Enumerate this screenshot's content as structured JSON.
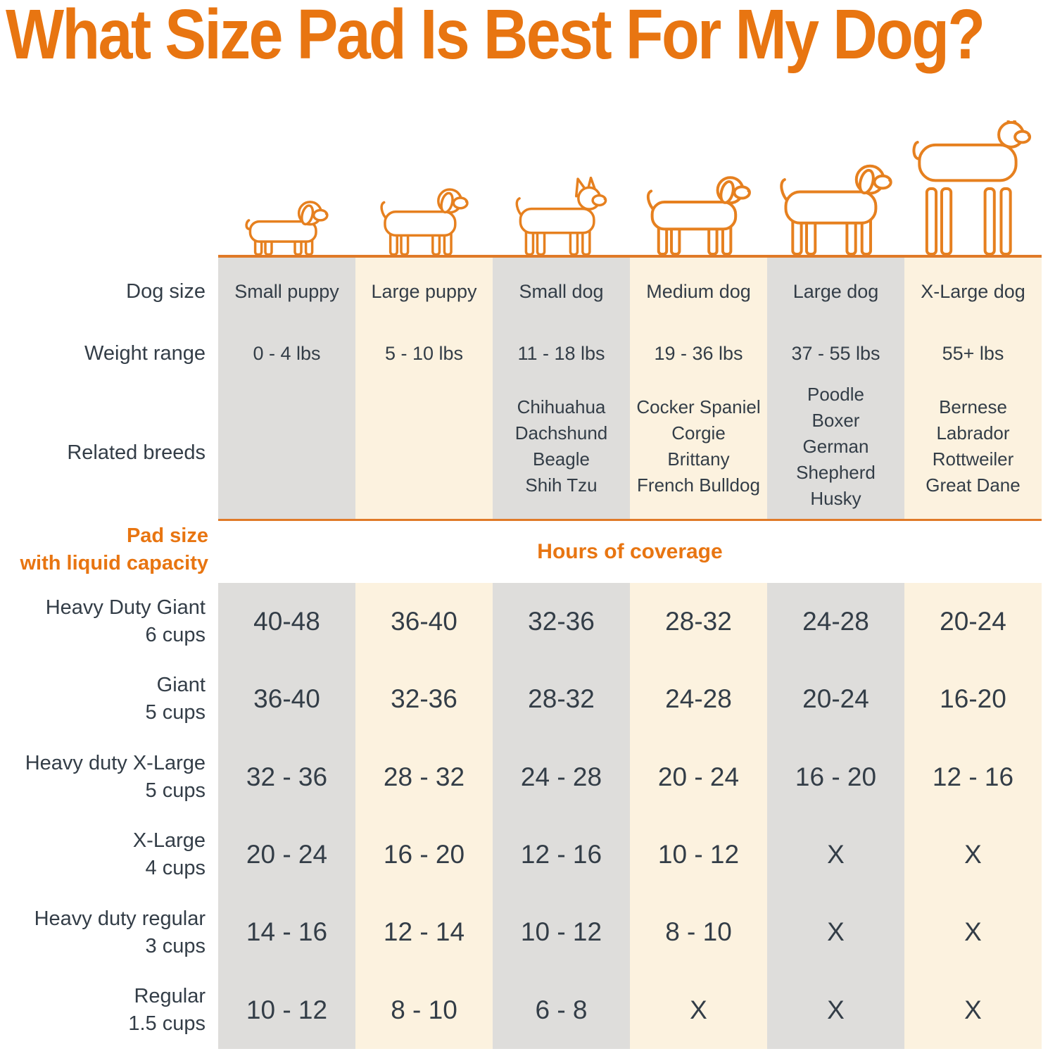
{
  "colors": {
    "accent_orange": "#E87511",
    "column_gray": "#DEDDDB",
    "column_cream": "#FCF2DF",
    "text_dark": "#333D47"
  },
  "chart_data": {
    "type": "table",
    "title": "What Size Pad Is Best For My Dog?",
    "row_headers": [
      "Dog size",
      "Weight range",
      "Related breeds"
    ],
    "columns": [
      {
        "label": "Small puppy",
        "weight": "0 - 4 lbs",
        "breeds": ""
      },
      {
        "label": "Large puppy",
        "weight": "5 - 10 lbs",
        "breeds": ""
      },
      {
        "label": "Small dog",
        "weight": "11 - 18 lbs",
        "breeds": "Chihuahua\nDachshund\nBeagle\nShih Tzu"
      },
      {
        "label": "Medium dog",
        "weight": "19 - 36 lbs",
        "breeds": "Cocker Spaniel\nCorgie\nBrittany\nFrench Bulldog"
      },
      {
        "label": "Large dog",
        "weight": "37 - 55 lbs",
        "breeds": "Poodle\nBoxer\nGerman\nShepherd\nHusky"
      },
      {
        "label": "X-Large dog",
        "weight": "55+ lbs",
        "breeds": "Bernese\nLabrador\nRottweiler\nGreat Dane"
      }
    ],
    "section_label": "Pad size\nwith liquid capacity",
    "coverage_header": "Hours of coverage",
    "pad_rows": [
      {
        "label": "Heavy Duty Giant",
        "capacity": "6 cups",
        "values": [
          "40-48",
          "36-40",
          "32-36",
          "28-32",
          "24-28",
          "20-24"
        ]
      },
      {
        "label": "Giant",
        "capacity": "5 cups",
        "values": [
          "36-40",
          "32-36",
          "28-32",
          "24-28",
          "20-24",
          "16-20"
        ]
      },
      {
        "label": "Heavy duty X-Large",
        "capacity": "5 cups",
        "values": [
          "32 - 36",
          "28 - 32",
          "24 - 28",
          "20 - 24",
          "16 - 20",
          "12 - 16"
        ]
      },
      {
        "label": "X-Large",
        "capacity": "4 cups",
        "values": [
          "20 - 24",
          "16 - 20",
          "12 - 16",
          "10 - 12",
          "X",
          "X"
        ]
      },
      {
        "label": "Heavy duty regular",
        "capacity": "3 cups",
        "values": [
          "14 - 16",
          "12 - 14",
          "10 - 12",
          "8 - 10",
          "X",
          "X"
        ]
      },
      {
        "label": "Regular",
        "capacity": "1.5 cups",
        "values": [
          "10 - 12",
          "8 - 10",
          "6 - 8",
          "X",
          "X",
          "X"
        ]
      }
    ],
    "dog_icons": [
      "small-puppy",
      "large-puppy",
      "small-dog",
      "medium-dog",
      "large-dog",
      "x-large-dog"
    ]
  }
}
